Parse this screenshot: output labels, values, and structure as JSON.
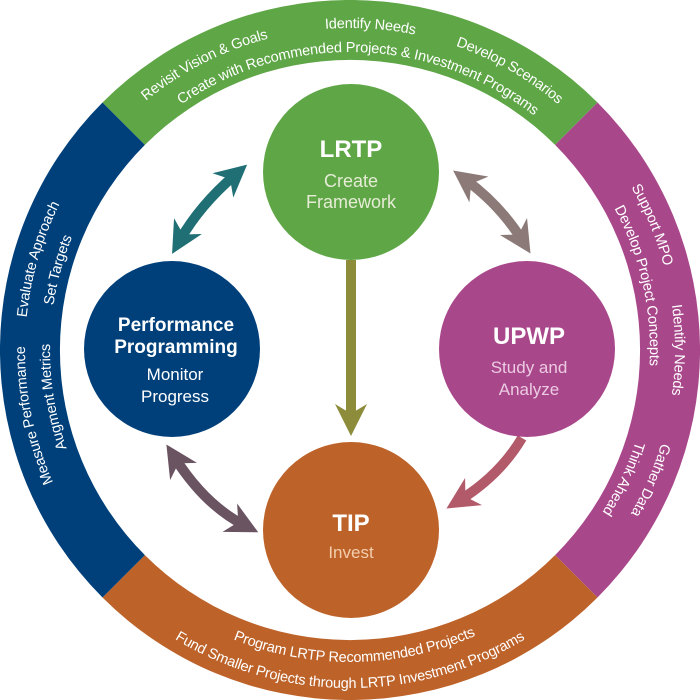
{
  "colors": {
    "lrtp": "#5ea646",
    "performance": "#00407a",
    "upwp": "#a9478b",
    "tip": "#bd6229",
    "lrtp_sub": "#e6ecd6",
    "upwp_sub": "#eccbe2",
    "tip_sub": "#f3cfae",
    "performance_sub": "#ffffff"
  },
  "ring": {
    "top": {
      "outer": [
        "Revisit Vision & Goals",
        "Identify Needs",
        "Develop Scenarios"
      ],
      "inner": [
        "Create with Recommended Projects & Investment Programs"
      ]
    },
    "left": {
      "outer": [
        "Measure Performance",
        "Evaluate Approach"
      ],
      "inner": [
        "Augment Metrics",
        "Set Targets"
      ]
    },
    "right": {
      "outer": [
        "Support MPO",
        "Identify Needs",
        "Gather Data"
      ],
      "inner": [
        "Develop Project Concepts",
        "Think Ahead"
      ]
    },
    "bottom": {
      "inner": [
        "Program LRTP Recommended Projects"
      ],
      "outer": [
        "Fund Smaller Projects through LRTP Investment Programs"
      ]
    }
  },
  "nodes": {
    "lrtp": {
      "title": "LRTP",
      "lines": [
        "Create",
        "Framework"
      ]
    },
    "performance": {
      "title_lines": [
        "Performance",
        "Programming"
      ],
      "lines": [
        "Monitor",
        "Progress"
      ]
    },
    "upwp": {
      "title": "UPWP",
      "lines": [
        "Study and",
        "Analyze"
      ]
    },
    "tip": {
      "title": "TIP",
      "lines": [
        "Invest"
      ]
    }
  },
  "arrows": [
    {
      "from": "LRTP",
      "to": "TIP",
      "direction": "one-way"
    },
    {
      "from": "LRTP",
      "to": "Performance Programming",
      "direction": "two-way"
    },
    {
      "from": "LRTP",
      "to": "UPWP",
      "direction": "two-way"
    },
    {
      "from": "Performance Programming",
      "to": "TIP",
      "direction": "two-way"
    },
    {
      "from": "UPWP",
      "to": "TIP",
      "direction": "one-way"
    }
  ]
}
